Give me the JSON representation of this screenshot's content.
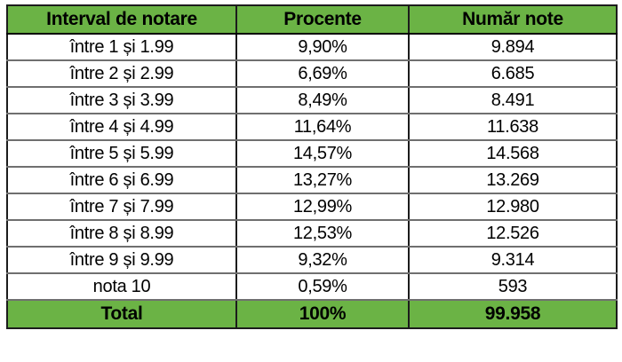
{
  "colors": {
    "header_green": "#6bb345",
    "grid_horizontal": "#6f6f6f",
    "grid_vertical": "#1c1c1c",
    "text": "#000000"
  },
  "table": {
    "columns": [
      "Interval de notare",
      "Procente",
      "Număr note"
    ],
    "rows": [
      [
        "între 1 și 1.99",
        "9,90%",
        "9.894"
      ],
      [
        "între 2 și 2.99",
        "6,69%",
        "6.685"
      ],
      [
        "între 3 și 3.99",
        "8,49%",
        "8.491"
      ],
      [
        "între 4 și 4.99",
        "11,64%",
        "11.638"
      ],
      [
        "între 5 și 5.99",
        "14,57%",
        "14.568"
      ],
      [
        "între 6 și 6.99",
        "13,27%",
        "13.269"
      ],
      [
        "între 7 și 7.99",
        "12,99%",
        "12.980"
      ],
      [
        "între 8 și 8.99",
        "12,53%",
        "12.526"
      ],
      [
        "între 9 și 9.99",
        "9,32%",
        "9.314"
      ],
      [
        "nota 10",
        "0,59%",
        "593"
      ]
    ],
    "total": [
      "Total",
      "100%",
      "99.958"
    ]
  },
  "chart_data": {
    "type": "table",
    "title": "",
    "columns": [
      "Interval de notare",
      "Procente",
      "Număr note"
    ],
    "categories": [
      "între 1 și 1.99",
      "între 2 și 2.99",
      "între 3 și 3.99",
      "între 4 și 4.99",
      "între 5 și 5.99",
      "între 6 și 6.99",
      "între 7 și 7.99",
      "între 8 și 8.99",
      "între 9 și 9.99",
      "nota 10"
    ],
    "series": [
      {
        "name": "Procente",
        "values": [
          9.9,
          6.69,
          8.49,
          11.64,
          14.57,
          13.27,
          12.99,
          12.53,
          9.32,
          0.59
        ],
        "unit": "%"
      },
      {
        "name": "Număr note",
        "values": [
          9894,
          6685,
          8491,
          11638,
          14568,
          13269,
          12980,
          12526,
          9314,
          593
        ]
      }
    ],
    "total": {
      "label": "Total",
      "procente": "100%",
      "numar_note": 99958
    }
  }
}
